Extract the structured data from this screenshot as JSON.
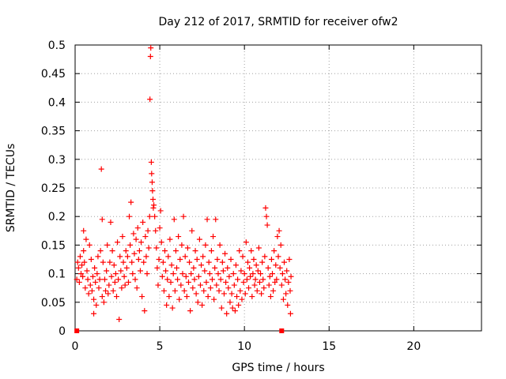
{
  "chart_data": {
    "type": "scatter",
    "title": "Day 212 of 2017, SRMTID for receiver ofw2",
    "xlabel": "GPS time / hours",
    "ylabel": "SRMTID / TECUs",
    "xlim": [
      0,
      24
    ],
    "ylim": [
      0,
      0.5
    ],
    "xticks": [
      0,
      5,
      10,
      15,
      20
    ],
    "xtick_labels": [
      "0",
      "5",
      "10",
      "15",
      "20"
    ],
    "yticks": [
      0,
      0.05,
      0.1,
      0.15,
      0.2,
      0.25,
      0.3,
      0.35,
      0.4,
      0.45,
      0.5
    ],
    "ytick_labels": [
      "0",
      "0.05",
      "0.1",
      "0.15",
      "0.2",
      "0.25",
      "0.3",
      "0.35",
      "0.4",
      "0.45",
      "0.5"
    ],
    "grid": true,
    "legend": null,
    "marker": "plus",
    "marker_color": "#ff0000",
    "series": [
      {
        "name": "SRMTID",
        "points": [
          [
            0.1,
            0.0
          ],
          [
            12.2,
            0.0
          ],
          [
            0.1,
            0.09
          ],
          [
            0.15,
            0.12
          ],
          [
            0.2,
            0.11
          ],
          [
            0.25,
            0.085
          ],
          [
            0.3,
            0.13
          ],
          [
            0.35,
            0.1
          ],
          [
            0.4,
            0.115
          ],
          [
            0.45,
            0.095
          ],
          [
            0.5,
            0.175
          ],
          [
            0.5,
            0.14
          ],
          [
            0.55,
            0.12
          ],
          [
            0.6,
            0.075
          ],
          [
            0.65,
            0.16
          ],
          [
            0.7,
            0.105
          ],
          [
            0.75,
            0.09
          ],
          [
            0.8,
            0.065
          ],
          [
            0.85,
            0.15
          ],
          [
            0.9,
            0.08
          ],
          [
            0.95,
            0.125
          ],
          [
            1.0,
            0.07
          ],
          [
            1.05,
            0.095
          ],
          [
            1.1,
            0.055
          ],
          [
            1.1,
            0.03
          ],
          [
            1.15,
            0.11
          ],
          [
            1.2,
            0.085
          ],
          [
            1.25,
            0.045
          ],
          [
            1.3,
            0.1
          ],
          [
            1.35,
            0.13
          ],
          [
            1.4,
            0.075
          ],
          [
            1.45,
            0.09
          ],
          [
            1.5,
            0.14
          ],
          [
            1.55,
            0.283
          ],
          [
            1.6,
            0.195
          ],
          [
            1.6,
            0.06
          ],
          [
            1.65,
            0.12
          ],
          [
            1.7,
            0.05
          ],
          [
            1.75,
            0.09
          ],
          [
            1.8,
            0.07
          ],
          [
            1.85,
            0.105
          ],
          [
            1.9,
            0.15
          ],
          [
            1.95,
            0.065
          ],
          [
            2.0,
            0.08
          ],
          [
            2.05,
            0.12
          ],
          [
            2.1,
            0.19
          ],
          [
            2.15,
            0.095
          ],
          [
            2.2,
            0.14
          ],
          [
            2.25,
            0.07
          ],
          [
            2.3,
            0.115
          ],
          [
            2.35,
            0.085
          ],
          [
            2.4,
            0.1
          ],
          [
            2.45,
            0.06
          ],
          [
            2.5,
            0.155
          ],
          [
            2.55,
            0.09
          ],
          [
            2.6,
            0.02
          ],
          [
            2.65,
            0.13
          ],
          [
            2.7,
            0.105
          ],
          [
            2.75,
            0.075
          ],
          [
            2.8,
            0.165
          ],
          [
            2.85,
            0.12
          ],
          [
            2.9,
            0.095
          ],
          [
            2.95,
            0.08
          ],
          [
            3.0,
            0.14
          ],
          [
            3.05,
            0.11
          ],
          [
            3.1,
            0.13
          ],
          [
            3.15,
            0.085
          ],
          [
            3.2,
            0.2
          ],
          [
            3.25,
            0.15
          ],
          [
            3.3,
            0.225
          ],
          [
            3.35,
            0.12
          ],
          [
            3.4,
            0.1
          ],
          [
            3.45,
            0.17
          ],
          [
            3.5,
            0.135
          ],
          [
            3.55,
            0.09
          ],
          [
            3.6,
            0.16
          ],
          [
            3.65,
            0.075
          ],
          [
            3.7,
            0.18
          ],
          [
            3.75,
            0.125
          ],
          [
            3.8,
            0.14
          ],
          [
            3.85,
            0.105
          ],
          [
            3.9,
            0.155
          ],
          [
            3.95,
            0.06
          ],
          [
            4.0,
            0.19
          ],
          [
            4.05,
            0.12
          ],
          [
            4.1,
            0.035
          ],
          [
            4.15,
            0.165
          ],
          [
            4.2,
            0.13
          ],
          [
            4.25,
            0.1
          ],
          [
            4.3,
            0.175
          ],
          [
            4.35,
            0.145
          ],
          [
            4.4,
            0.2
          ],
          [
            4.42,
            0.405
          ],
          [
            4.45,
            0.48
          ],
          [
            4.47,
            0.495
          ],
          [
            4.5,
            0.295
          ],
          [
            4.52,
            0.275
          ],
          [
            4.55,
            0.26
          ],
          [
            4.57,
            0.245
          ],
          [
            4.6,
            0.23
          ],
          [
            4.62,
            0.215
          ],
          [
            4.65,
            0.22
          ],
          [
            4.7,
            0.2
          ],
          [
            4.75,
            0.175
          ],
          [
            4.8,
            0.145
          ],
          [
            4.85,
            0.11
          ],
          [
            4.9,
            0.08
          ],
          [
            4.95,
            0.125
          ],
          [
            5.0,
            0.18
          ],
          [
            5.05,
            0.21
          ],
          [
            5.1,
            0.155
          ],
          [
            5.15,
            0.095
          ],
          [
            5.2,
            0.12
          ],
          [
            5.25,
            0.07
          ],
          [
            5.3,
            0.14
          ],
          [
            5.35,
            0.105
          ],
          [
            5.4,
            0.045
          ],
          [
            5.45,
            0.09
          ],
          [
            5.5,
            0.13
          ],
          [
            5.55,
            0.06
          ],
          [
            5.6,
            0.16
          ],
          [
            5.65,
            0.085
          ],
          [
            5.7,
            0.115
          ],
          [
            5.75,
            0.04
          ],
          [
            5.8,
            0.1
          ],
          [
            5.85,
            0.195
          ],
          [
            5.9,
            0.07
          ],
          [
            5.95,
            0.14
          ],
          [
            6.0,
            0.11
          ],
          [
            6.05,
            0.09
          ],
          [
            6.1,
            0.165
          ],
          [
            6.15,
            0.055
          ],
          [
            6.2,
            0.125
          ],
          [
            6.25,
            0.08
          ],
          [
            6.3,
            0.15
          ],
          [
            6.35,
            0.1
          ],
          [
            6.4,
            0.2
          ],
          [
            6.45,
            0.07
          ],
          [
            6.5,
            0.13
          ],
          [
            6.55,
            0.095
          ],
          [
            6.6,
            0.06
          ],
          [
            6.65,
            0.145
          ],
          [
            6.7,
            0.085
          ],
          [
            6.75,
            0.12
          ],
          [
            6.8,
            0.035
          ],
          [
            6.85,
            0.1
          ],
          [
            6.9,
            0.175
          ],
          [
            6.95,
            0.075
          ],
          [
            7.0,
            0.11
          ],
          [
            7.05,
            0.09
          ],
          [
            7.1,
            0.14
          ],
          [
            7.15,
            0.065
          ],
          [
            7.2,
            0.125
          ],
          [
            7.25,
            0.05
          ],
          [
            7.3,
            0.095
          ],
          [
            7.35,
            0.16
          ],
          [
            7.4,
            0.08
          ],
          [
            7.45,
            0.115
          ],
          [
            7.5,
            0.045
          ],
          [
            7.55,
            0.13
          ],
          [
            7.6,
            0.07
          ],
          [
            7.65,
            0.105
          ],
          [
            7.7,
            0.15
          ],
          [
            7.75,
            0.085
          ],
          [
            7.8,
            0.195
          ],
          [
            7.85,
            0.06
          ],
          [
            7.9,
            0.12
          ],
          [
            7.95,
            0.1
          ],
          [
            8.0,
            0.075
          ],
          [
            8.05,
            0.14
          ],
          [
            8.1,
            0.09
          ],
          [
            8.15,
            0.165
          ],
          [
            8.2,
            0.055
          ],
          [
            8.25,
            0.11
          ],
          [
            8.3,
            0.195
          ],
          [
            8.35,
            0.08
          ],
          [
            8.4,
            0.125
          ],
          [
            8.45,
            0.1
          ],
          [
            8.5,
            0.07
          ],
          [
            8.55,
            0.15
          ],
          [
            8.6,
            0.09
          ],
          [
            8.65,
            0.04
          ],
          [
            8.7,
            0.12
          ],
          [
            8.75,
            0.105
          ],
          [
            8.8,
            0.065
          ],
          [
            8.85,
            0.135
          ],
          [
            8.9,
            0.085
          ],
          [
            8.95,
            0.03
          ],
          [
            9.0,
            0.11
          ],
          [
            9.05,
            0.075
          ],
          [
            9.1,
            0.095
          ],
          [
            9.15,
            0.05
          ],
          [
            9.2,
            0.125
          ],
          [
            9.25,
            0.065
          ],
          [
            9.3,
            0.04
          ],
          [
            9.35,
            0.1
          ],
          [
            9.4,
            0.08
          ],
          [
            9.45,
            0.035
          ],
          [
            9.5,
            0.115
          ],
          [
            9.55,
            0.06
          ],
          [
            9.6,
            0.09
          ],
          [
            9.65,
            0.045
          ],
          [
            9.7,
            0.14
          ],
          [
            9.75,
            0.07
          ],
          [
            9.8,
            0.105
          ],
          [
            9.85,
            0.055
          ],
          [
            9.9,
            0.13
          ],
          [
            9.95,
            0.085
          ],
          [
            10.0,
            0.1
          ],
          [
            10.05,
            0.065
          ],
          [
            10.1,
            0.155
          ],
          [
            10.15,
            0.09
          ],
          [
            10.2,
            0.12
          ],
          [
            10.25,
            0.075
          ],
          [
            10.3,
            0.11
          ],
          [
            10.35,
            0.095
          ],
          [
            10.4,
            0.14
          ],
          [
            10.45,
            0.06
          ],
          [
            10.5,
            0.1
          ],
          [
            10.55,
            0.125
          ],
          [
            10.6,
            0.08
          ],
          [
            10.65,
            0.09
          ],
          [
            10.7,
            0.115
          ],
          [
            10.75,
            0.07
          ],
          [
            10.8,
            0.105
          ],
          [
            10.85,
            0.145
          ],
          [
            10.9,
            0.085
          ],
          [
            10.95,
            0.1
          ],
          [
            11.0,
            0.065
          ],
          [
            11.05,
            0.12
          ],
          [
            11.1,
            0.09
          ],
          [
            11.15,
            0.075
          ],
          [
            11.2,
            0.13
          ],
          [
            11.25,
            0.215
          ],
          [
            11.3,
            0.2
          ],
          [
            11.35,
            0.185
          ],
          [
            11.4,
            0.11
          ],
          [
            11.45,
            0.08
          ],
          [
            11.5,
            0.095
          ],
          [
            11.55,
            0.06
          ],
          [
            11.6,
            0.125
          ],
          [
            11.65,
            0.1
          ],
          [
            11.7,
            0.07
          ],
          [
            11.75,
            0.14
          ],
          [
            11.8,
            0.085
          ],
          [
            11.85,
            0.115
          ],
          [
            11.9,
            0.09
          ],
          [
            11.95,
            0.165
          ],
          [
            12.0,
            0.13
          ],
          [
            12.05,
            0.175
          ],
          [
            12.1,
            0.11
          ],
          [
            12.15,
            0.15
          ],
          [
            12.2,
            0.08
          ],
          [
            12.25,
            0.1
          ],
          [
            12.3,
            0.055
          ],
          [
            12.35,
            0.12
          ],
          [
            12.4,
            0.09
          ],
          [
            12.45,
            0.065
          ],
          [
            12.5,
            0.105
          ],
          [
            12.55,
            0.045
          ],
          [
            12.6,
            0.085
          ],
          [
            12.65,
            0.125
          ],
          [
            12.7,
            0.07
          ],
          [
            12.72,
            0.03
          ],
          [
            12.75,
            0.095
          ]
        ]
      }
    ]
  }
}
